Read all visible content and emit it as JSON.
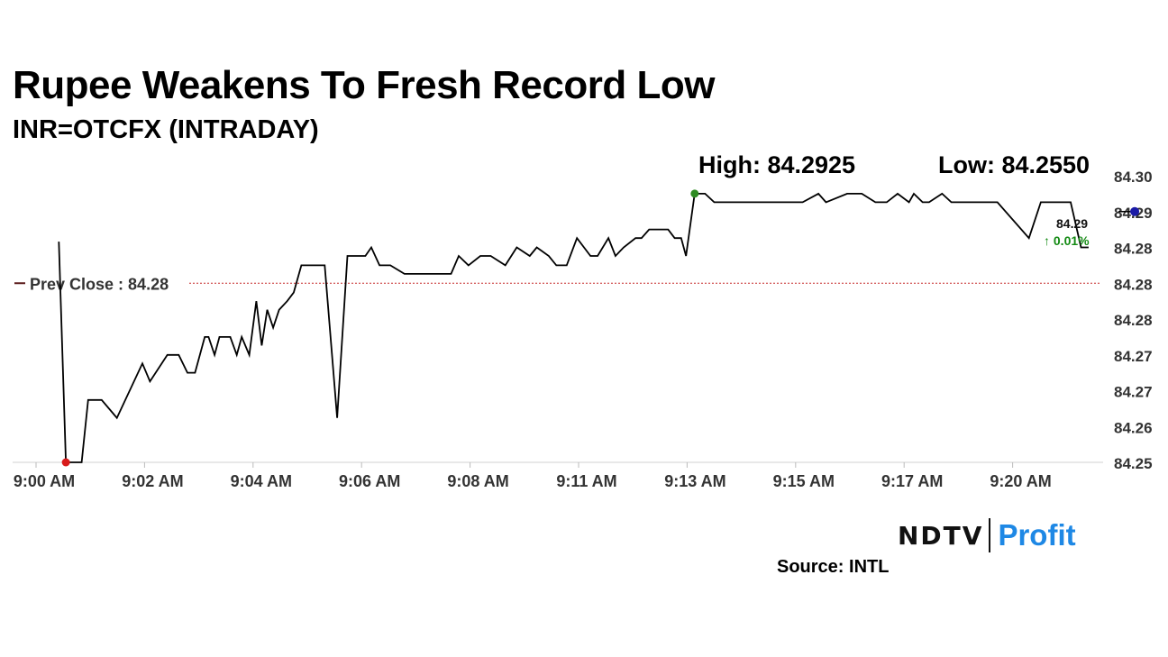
{
  "title": "Rupee Weakens To Fresh Record Low",
  "subtitle": "INR=OTCFX (INTRADAY)",
  "high_label": "High: 84.2925",
  "low_label": "Low: 84.2550",
  "prev_close_label": "Prev Close : 84.28",
  "last_value_label": "84.29",
  "change_label": "↑ 0.01%",
  "brand": {
    "left": "NDTV",
    "right": "Profit"
  },
  "source": "Source: INTL",
  "colors": {
    "line": "#000000",
    "prev_close": "#c62828",
    "high_dot": "#2e8b22",
    "low_dot": "#d81b1b",
    "last_dot": "#1a1aa6",
    "change": "#138a13",
    "brand_blue": "#1e88e5",
    "brand_pink": "#e040a0"
  },
  "chart_data": {
    "type": "line",
    "title": "Rupee Weakens To Fresh Record Low",
    "subtitle": "INR=OTCFX (INTRADAY)",
    "xlabel": "",
    "ylabel": "",
    "x_ticks": [
      "9:00 AM",
      "9:02 AM",
      "9:04 AM",
      "9:06 AM",
      "9:08 AM",
      "9:11 AM",
      "9:13 AM",
      "9:15 AM",
      "9:17 AM",
      "9:20 AM"
    ],
    "x_range_minutes": [
      0,
      20.25
    ],
    "y_ticks": [
      "84.25",
      "84.26",
      "84.27",
      "84.27",
      "84.28",
      "84.28",
      "84.28",
      "84.29",
      "84.30"
    ],
    "ylim": [
      84.255,
      84.295
    ],
    "prev_close": 84.28,
    "high": 84.2925,
    "low": 84.255,
    "last": 84.29,
    "grid": false,
    "series": [
      {
        "x": [
          0.42,
          0.55,
          0.84,
          0.96,
          1.21,
          1.49,
          1.96,
          2.1,
          2.42,
          2.63,
          2.79,
          2.93,
          3.11,
          3.18,
          3.29,
          3.38,
          3.58,
          3.7,
          3.79,
          3.93,
          4.06,
          4.16,
          4.26,
          4.37,
          4.48,
          4.63,
          4.75,
          4.89,
          5.01,
          5.32,
          5.55,
          5.74,
          5.87,
          6.07,
          6.18,
          6.33,
          6.53,
          6.79,
          7.08,
          7.43,
          7.65,
          7.79,
          7.97,
          8.19,
          8.38,
          8.65,
          8.86,
          9.1,
          9.23,
          9.45,
          9.59,
          9.78,
          9.97,
          10.22,
          10.35,
          10.55,
          10.68,
          10.83,
          11.05,
          11.16,
          11.3,
          11.48,
          11.65,
          11.77,
          11.89,
          11.98,
          12.14,
          12.33,
          12.5,
          12.73,
          12.91,
          13.02,
          13.29,
          13.49,
          13.86,
          14.13,
          14.42,
          14.56,
          14.95,
          15.22,
          15.47,
          15.68,
          15.88,
          16.09,
          16.18,
          16.34,
          16.46,
          16.7,
          16.87,
          17.03,
          17.2,
          17.45,
          17.72,
          18.3,
          18.52,
          18.69,
          18.9,
          19.07,
          19.26,
          19.4
        ],
        "y": [
          84.2858,
          84.255,
          84.255,
          84.2637,
          84.2637,
          84.2612,
          84.2688,
          84.2663,
          84.27,
          84.27,
          84.2675,
          84.2675,
          84.2725,
          84.2725,
          84.27,
          84.2725,
          84.2725,
          84.27,
          84.2725,
          84.27,
          84.2775,
          84.2713,
          84.2763,
          84.2738,
          84.2763,
          84.2775,
          84.2787,
          84.2825,
          84.2825,
          84.2825,
          84.2612,
          84.2838,
          84.2838,
          84.2838,
          84.285,
          84.2825,
          84.2825,
          84.2813,
          84.2813,
          84.2813,
          84.2813,
          84.2838,
          84.2825,
          84.2838,
          84.2838,
          84.2825,
          84.285,
          84.2838,
          84.285,
          84.2838,
          84.2825,
          84.2825,
          84.2863,
          84.2838,
          84.2838,
          84.2863,
          84.2838,
          84.285,
          84.2863,
          84.2863,
          84.2875,
          84.2875,
          84.2875,
          84.2863,
          84.2863,
          84.2838,
          84.2925,
          84.2925,
          84.2913,
          84.2913,
          84.2913,
          84.2913,
          84.2913,
          84.2913,
          84.2913,
          84.2913,
          84.2925,
          84.2913,
          84.2925,
          84.2925,
          84.2913,
          84.2913,
          84.2925,
          84.2913,
          84.2925,
          84.2913,
          84.2913,
          84.2925,
          84.2913,
          84.2913,
          84.2913,
          84.2913,
          84.2913,
          84.2863,
          84.2913,
          84.2913,
          84.2913,
          84.2913,
          84.285,
          84.285
        ]
      }
    ]
  }
}
